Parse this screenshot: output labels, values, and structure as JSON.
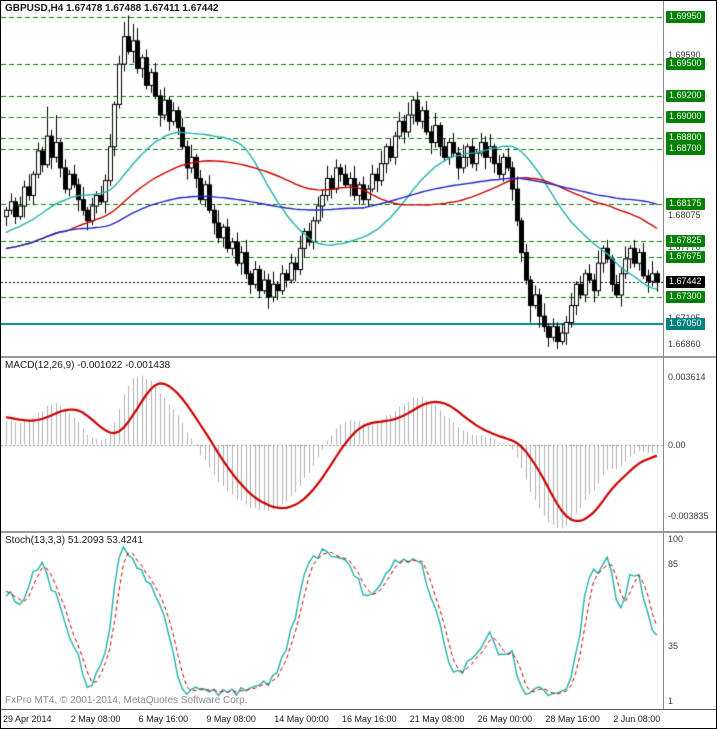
{
  "price_panel": {
    "header": "GBPUSD,H4  1.67478 1.67488 1.67411 1.67442"
  },
  "macd_panel": {
    "header": "MACD(12,26,9) -0.001022 -0.001438"
  },
  "stoch_panel": {
    "header": "Stoch(13,3,3) 51.2093 53.4241"
  },
  "footer": {
    "copyright": "FxPro MT4, © 2001-2014, MetaQuotes Software Corp."
  },
  "time_axis": {
    "labels": [
      {
        "text": "29 Apr 2014",
        "bar": 0
      },
      {
        "text": "2 May 08:00",
        "bar": 15
      },
      {
        "text": "6 May 16:00",
        "bar": 30
      },
      {
        "text": "9 May 08:00",
        "bar": 45
      },
      {
        "text": "14 May 00:00",
        "bar": 60
      },
      {
        "text": "16 May 16:00",
        "bar": 75
      },
      {
        "text": "21 May 08:00",
        "bar": 90
      },
      {
        "text": "26 May 00:00",
        "bar": 105
      },
      {
        "text": "28 May 16:00",
        "bar": 120
      },
      {
        "text": "2 Jun 08:00",
        "bar": 135
      }
    ]
  },
  "chart_data": [
    {
      "type": "candlestick",
      "title": "GBPUSD,H4",
      "symbol": "GBPUSD",
      "timeframe": "H4",
      "ohlc_current": {
        "open": 1.67478,
        "high": 1.67488,
        "low": 1.67411,
        "close": 1.67442
      },
      "ylim": [
        1.668,
        1.7004
      ],
      "candle_up_color": "#ffffff",
      "candle_down_color": "#000000",
      "candle_border_color": "#000000",
      "level_color": "#008000",
      "levels": [
        {
          "price": 1.6995,
          "label": "1.69950"
        },
        {
          "price": 1.695,
          "label": "1.69500"
        },
        {
          "price": 1.692,
          "label": "1.69200"
        },
        {
          "price": 1.69,
          "label": "1.69000"
        },
        {
          "price": 1.688,
          "label": "1.68800"
        },
        {
          "price": 1.687,
          "label": "1.68700"
        },
        {
          "price": 1.68175,
          "label": "1.68175"
        },
        {
          "price": 1.67825,
          "label": "1.67825"
        },
        {
          "price": 1.67675,
          "label": "1.67675"
        },
        {
          "price": 1.673,
          "label": "1.67300"
        }
      ],
      "support_line": {
        "price": 1.6705,
        "label": "1.67050",
        "color": "#007f7f"
      },
      "bid_line": {
        "price": 1.67442,
        "label": "1.67442",
        "color": "#000000"
      },
      "axis_ticks": [
        {
          "price": 1.6959,
          "label": "1.69590"
        },
        {
          "price": 1.68075,
          "label": "1.68075"
        },
        {
          "price": 1.6777,
          "label": "1.67770"
        },
        {
          "price": 1.67105,
          "label": "1.67105"
        },
        {
          "price": 1.6686,
          "label": "1.66860"
        }
      ],
      "moving_averages": [
        {
          "name": "ma-fast",
          "period": 30,
          "color": "#20b2aa"
        },
        {
          "name": "ma-mid",
          "period": 55,
          "color": "#cc0000"
        },
        {
          "name": "ma-slow",
          "period": 120,
          "color": "#2222cc"
        }
      ],
      "high_wick_pattern_pips": [
        4,
        9,
        6,
        12,
        3,
        8
      ],
      "low_wick_pattern_pips": [
        7,
        3,
        11,
        5,
        9,
        4
      ],
      "wick_overrides": {
        "9": {
          "high": 1.691
        },
        "11": {
          "high": 1.6902
        },
        "26": {
          "high": 1.699
        },
        "27": {
          "high": 1.6996
        },
        "28": {
          "high": 1.6988
        },
        "58": {
          "low": 1.6728
        },
        "116": {
          "low": 1.6706
        },
        "120": {
          "low": 1.6686
        },
        "122": {
          "low": 1.6687
        }
      },
      "warmup_closes": [
        1.6718,
        1.6724,
        1.672,
        1.6728,
        1.6734,
        1.673,
        1.6738,
        1.6744,
        1.674,
        1.6748,
        1.6754,
        1.675,
        1.6758,
        1.6764,
        1.676,
        1.6768,
        1.6774,
        1.677,
        1.6778,
        1.6784,
        1.678,
        1.6788,
        1.6794,
        1.679,
        1.6786,
        1.6792,
        1.6798,
        1.6794,
        1.68,
        1.6806,
        1.6802,
        1.6808,
        1.6804,
        1.681,
        1.6806,
        1.6812,
        1.6808,
        1.6814,
        1.681,
        1.6806
      ],
      "closes": [
        1.6812,
        1.682,
        1.6806,
        1.6816,
        1.6834,
        1.6826,
        1.6846,
        1.6868,
        1.6855,
        1.6882,
        1.6862,
        1.6876,
        1.6852,
        1.6832,
        1.6846,
        1.6836,
        1.6822,
        1.6812,
        1.6802,
        1.6816,
        1.6826,
        1.682,
        1.684,
        1.6872,
        1.6912,
        1.695,
        1.6976,
        1.6962,
        1.6972,
        1.6946,
        1.6956,
        1.693,
        1.6942,
        1.692,
        1.6902,
        1.6916,
        1.6896,
        1.6906,
        1.689,
        1.6872,
        1.6852,
        1.6862,
        1.6842,
        1.6822,
        1.6836,
        1.6812,
        1.68,
        1.6786,
        1.6796,
        1.6776,
        1.6782,
        1.6762,
        1.6772,
        1.6752,
        1.6742,
        1.6756,
        1.6736,
        1.6746,
        1.673,
        1.6742,
        1.6736,
        1.6752,
        1.6746,
        1.6762,
        1.6756,
        1.6776,
        1.6792,
        1.6782,
        1.6802,
        1.6816,
        1.6826,
        1.6842,
        1.6832,
        1.6852,
        1.6846,
        1.6836,
        1.6842,
        1.6826,
        1.6836,
        1.6822,
        1.6832,
        1.6846,
        1.684,
        1.6856,
        1.6872,
        1.6862,
        1.6882,
        1.6896,
        1.6886,
        1.6902,
        1.6916,
        1.6896,
        1.6906,
        1.6886,
        1.6876,
        1.6892,
        1.6872,
        1.6862,
        1.6876,
        1.6866,
        1.6852,
        1.6862,
        1.6872,
        1.6856,
        1.6866,
        1.6876,
        1.6862,
        1.6872,
        1.6856,
        1.6846,
        1.6862,
        1.6852,
        1.6832,
        1.6802,
        1.6772,
        1.6746,
        1.6722,
        1.6732,
        1.6712,
        1.6702,
        1.6692,
        1.6702,
        1.6688,
        1.6696,
        1.6706,
        1.6722,
        1.6742,
        1.6732,
        1.6752,
        1.6746,
        1.6736,
        1.6762,
        1.6776,
        1.6766,
        1.6742,
        1.6732,
        1.6752,
        1.6766,
        1.6776,
        1.6762,
        1.6772,
        1.675,
        1.6745,
        1.6752,
        1.6744
      ]
    },
    {
      "type": "macd",
      "label": "MACD(12,26,9)",
      "params": [
        12,
        26,
        9
      ],
      "current_values": [
        "-0.001022",
        "-0.001438"
      ],
      "histogram_color": "#b0b0b0",
      "signal_color": "#cc0000",
      "ylim": [
        -0.0043,
        0.0043
      ],
      "axis_ticks": [
        {
          "value": 0.003614,
          "label": "0.003614"
        },
        {
          "value": 0,
          "label": "0.00"
        },
        {
          "value": -0.003835,
          "label": "-0.003835"
        }
      ]
    },
    {
      "type": "stochastic",
      "label": "Stoch(13,3,3)",
      "params": [
        13,
        3,
        3
      ],
      "current_values": [
        "51.2093",
        "53.4241"
      ],
      "main_color": "#20b2aa",
      "signal_color": "#cc0000",
      "ylim": [
        0,
        100
      ],
      "axis_ticks": [
        {
          "value": 100,
          "label": "100"
        },
        {
          "value": 85,
          "label": "85"
        },
        {
          "value": 35,
          "label": "35"
        },
        {
          "value": 1,
          "label": "1"
        }
      ]
    }
  ]
}
